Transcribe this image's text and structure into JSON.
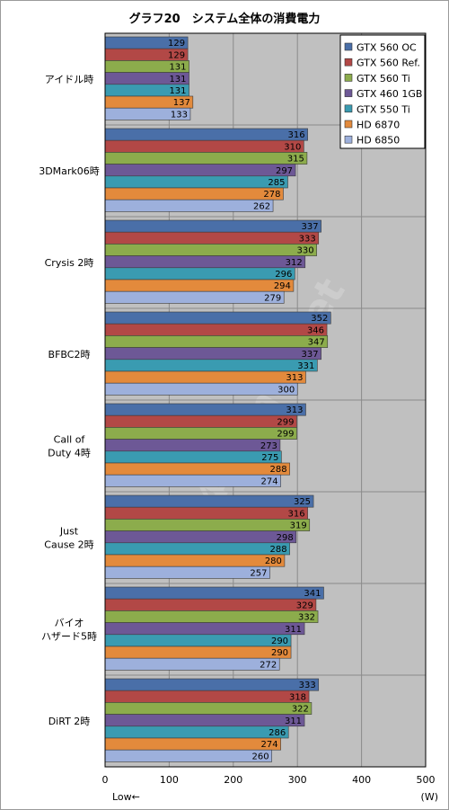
{
  "title": "グラフ20　システム全体の消費電力",
  "xlabel_left": "Low←",
  "xlabel_unit": "(W)",
  "watermark": "4Gamer.net",
  "chart_data": {
    "type": "bar",
    "orientation": "horizontal",
    "title": "グラフ20　システム全体の消費電力",
    "xlim": [
      0,
      500
    ],
    "xticks": [
      0,
      100,
      200,
      300,
      400,
      500
    ],
    "grid": true,
    "legend_position": "top-right",
    "categories": [
      "アイドル時",
      "3DMark06時",
      "Crysis 2時",
      "BFBC2時",
      "Call of\nDuty 4時",
      "Just\nCause 2時",
      "バイオ\nハザード5時",
      "DiRT 2時"
    ],
    "series": [
      {
        "name": "GTX 560 OC",
        "color": "#4a6fa8",
        "values": [
          129,
          316,
          337,
          352,
          313,
          325,
          341,
          333
        ]
      },
      {
        "name": "GTX 560 Ref.",
        "color": "#b24846",
        "values": [
          129,
          310,
          333,
          346,
          299,
          316,
          329,
          318
        ]
      },
      {
        "name": "GTX 560 Ti",
        "color": "#8cac4c",
        "values": [
          131,
          315,
          330,
          347,
          299,
          319,
          332,
          322
        ]
      },
      {
        "name": "GTX 460 1GB",
        "color": "#6d5896",
        "values": [
          131,
          297,
          312,
          337,
          273,
          298,
          311,
          311
        ]
      },
      {
        "name": "GTX 550 Ti",
        "color": "#3a9bb1",
        "values": [
          131,
          285,
          296,
          331,
          275,
          288,
          290,
          286
        ]
      },
      {
        "name": "HD 6870",
        "color": "#e38a3c",
        "values": [
          137,
          278,
          294,
          313,
          288,
          280,
          290,
          274
        ]
      },
      {
        "name": "HD 6850",
        "color": "#9db0dc",
        "values": [
          133,
          262,
          279,
          300,
          274,
          257,
          272,
          260
        ]
      }
    ]
  }
}
